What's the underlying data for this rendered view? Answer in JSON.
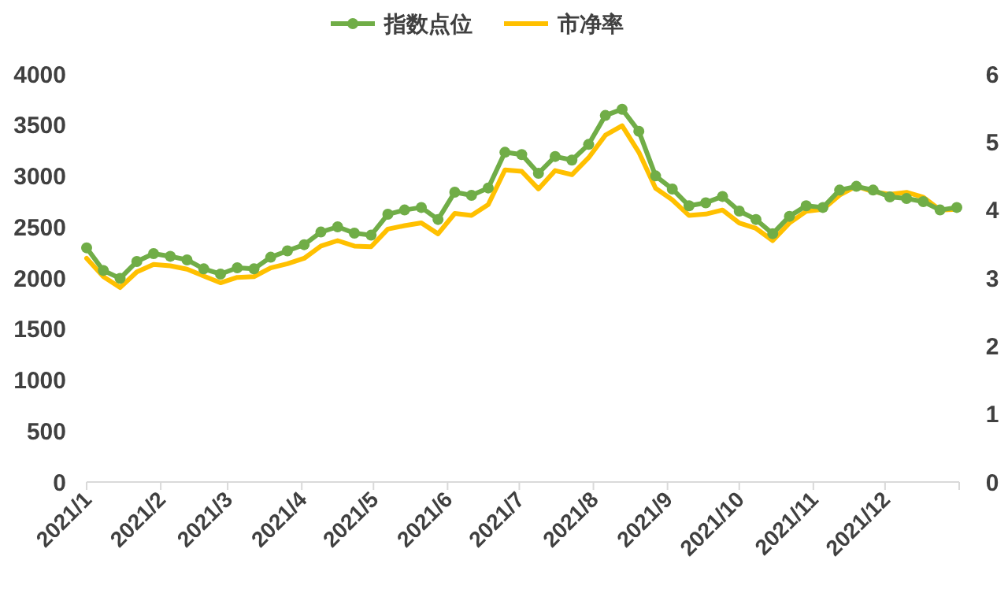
{
  "chart_data": {
    "type": "line",
    "x": [
      "2021-01-01",
      "2021-01-08",
      "2021-01-15",
      "2021-01-22",
      "2021-01-29",
      "2021-02-05",
      "2021-02-12",
      "2021-02-19",
      "2021-02-26",
      "2021-03-05",
      "2021-03-12",
      "2021-03-19",
      "2021-03-26",
      "2021-04-02",
      "2021-04-09",
      "2021-04-16",
      "2021-04-23",
      "2021-04-30",
      "2021-05-07",
      "2021-05-14",
      "2021-05-21",
      "2021-05-28",
      "2021-06-04",
      "2021-06-11",
      "2021-06-18",
      "2021-06-25",
      "2021-07-02",
      "2021-07-09",
      "2021-07-16",
      "2021-07-23",
      "2021-07-30",
      "2021-08-06",
      "2021-08-13",
      "2021-08-20",
      "2021-08-27",
      "2021-09-03",
      "2021-09-10",
      "2021-09-17",
      "2021-09-24",
      "2021-10-01",
      "2021-10-08",
      "2021-10-15",
      "2021-10-22",
      "2021-10-29",
      "2021-11-05",
      "2021-11-12",
      "2021-11-19",
      "2021-11-26",
      "2021-12-03",
      "2021-12-10",
      "2021-12-17",
      "2021-12-24",
      "2021-12-31"
    ],
    "series": [
      {
        "name": "指数点位",
        "color": "#70ad47",
        "marker": "circle",
        "values": [
          2296,
          2074,
          1997,
          2162,
          2239,
          2213,
          2178,
          2090,
          2039,
          2100,
          2090,
          2204,
          2266,
          2327,
          2451,
          2502,
          2440,
          2420,
          2625,
          2667,
          2692,
          2574,
          2842,
          2811,
          2883,
          3233,
          3210,
          3027,
          3192,
          3156,
          3310,
          3594,
          3655,
          3439,
          3001,
          2873,
          2708,
          2738,
          2800,
          2656,
          2574,
          2435,
          2605,
          2708,
          2692,
          2862,
          2899,
          2862,
          2795,
          2780,
          2749,
          2667,
          2692
        ]
      },
      {
        "name": "市净率",
        "color": "#ffc000",
        "axis": "y2",
        "marker": "none",
        "values": [
          3.29,
          3.02,
          2.86,
          3.09,
          3.2,
          3.18,
          3.13,
          3.03,
          2.93,
          3.01,
          3.02,
          3.15,
          3.21,
          3.29,
          3.47,
          3.55,
          3.47,
          3.46,
          3.72,
          3.77,
          3.81,
          3.65,
          3.95,
          3.92,
          4.08,
          4.59,
          4.57,
          4.31,
          4.58,
          4.52,
          4.77,
          5.1,
          5.24,
          4.85,
          4.32,
          4.15,
          3.92,
          3.94,
          4.0,
          3.81,
          3.73,
          3.55,
          3.81,
          3.98,
          4.01,
          4.22,
          4.35,
          4.27,
          4.23,
          4.26,
          4.19,
          4.0,
          4.01
        ]
      }
    ],
    "xlim": [
      "2021-01-01",
      "2022-01-01"
    ],
    "xticks": [
      {
        "value": "2021-01-01",
        "label": "2021/1"
      },
      {
        "value": "2021-02-01",
        "label": "2021/2"
      },
      {
        "value": "2021-03-01",
        "label": "2021/3"
      },
      {
        "value": "2021-04-01",
        "label": "2021/4"
      },
      {
        "value": "2021-05-01",
        "label": "2021/5"
      },
      {
        "value": "2021-06-01",
        "label": "2021/6"
      },
      {
        "value": "2021-07-01",
        "label": "2021/7"
      },
      {
        "value": "2021-08-01",
        "label": "2021/8"
      },
      {
        "value": "2021-09-01",
        "label": "2021/9"
      },
      {
        "value": "2021-10-01",
        "label": "2021/10"
      },
      {
        "value": "2021-11-01",
        "label": "2021/11"
      },
      {
        "value": "2021-12-01",
        "label": "2021/12"
      },
      {
        "value": "2022-01-01",
        "label": null
      }
    ],
    "ylim": [
      0,
      4000
    ],
    "yticks": [
      0,
      500,
      1000,
      1500,
      2000,
      2500,
      3000,
      3500,
      4000
    ],
    "y2lim": [
      0,
      6
    ],
    "y2ticks": [
      0,
      1,
      2,
      3,
      4,
      5,
      6
    ],
    "grid": false,
    "legend": "top",
    "line_style": "solid"
  }
}
